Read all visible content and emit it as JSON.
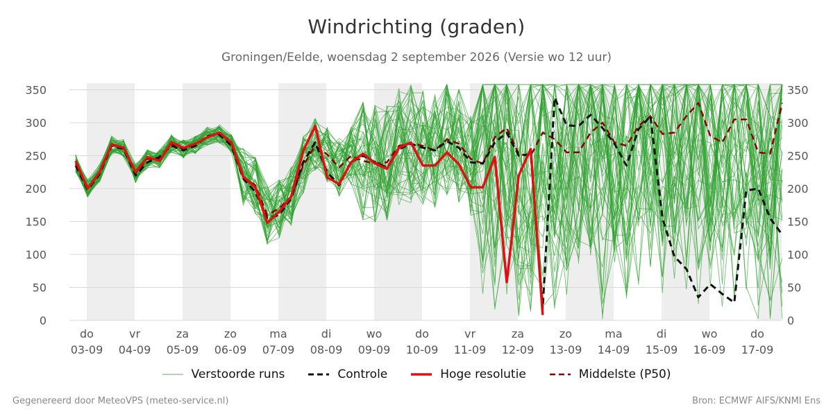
{
  "header": {
    "title": "Windrichting (graden)",
    "subtitle": "Groningen/Eelde, woensdag  2 september 2026 (Versie wo 12 uur)"
  },
  "footer": {
    "left": "Gegenereerd door MeteoVPS (meteo-service.nl)",
    "right": "Bron: ECMWF AIFS/KNMI Ens"
  },
  "colors": {
    "members": "#2ca02c",
    "control": "#111111",
    "hires": "#dd1111",
    "median": "#8b0000",
    "weekend_shade": "#eeeeee",
    "grid": "#d8d8d8"
  },
  "legend": [
    {
      "key": "members",
      "label": "Verstoorde runs",
      "style": "thin"
    },
    {
      "key": "control",
      "label": "Controle",
      "style": "dashed"
    },
    {
      "key": "hires",
      "label": "Hoge resolutie",
      "style": "solid"
    },
    {
      "key": "median",
      "label": "Middelste (P50)",
      "style": "dashed"
    }
  ],
  "chart_data": {
    "type": "line",
    "title": "Windrichting (graden)",
    "x_unit": "days (time axis, 6-hourly steps starting 2 Sep 2026 18:00)",
    "ylim": [
      0,
      360
    ],
    "yticks": [
      0,
      50,
      100,
      150,
      200,
      250,
      300,
      350
    ],
    "x_start_index": 0,
    "x_step_hours": 6,
    "date_ticks": [
      {
        "day": "do",
        "date": "03-09"
      },
      {
        "day": "vr",
        "date": "04-09"
      },
      {
        "day": "za",
        "date": "05-09"
      },
      {
        "day": "zo",
        "date": "06-09"
      },
      {
        "day": "ma",
        "date": "07-09"
      },
      {
        "day": "di",
        "date": "08-09"
      },
      {
        "day": "wo",
        "date": "09-09"
      },
      {
        "day": "do",
        "date": "10-09"
      },
      {
        "day": "vr",
        "date": "11-09"
      },
      {
        "day": "za",
        "date": "12-09"
      },
      {
        "day": "zo",
        "date": "13-09"
      },
      {
        "day": "ma",
        "date": "14-09"
      },
      {
        "day": "di",
        "date": "15-09"
      },
      {
        "day": "wo",
        "date": "16-09"
      },
      {
        "day": "do",
        "date": "17-09"
      }
    ],
    "grid": true,
    "legend_position": "bottom",
    "series": [
      {
        "name": "Hoge resolutie",
        "key": "hires",
        "values": [
          242,
          200,
          225,
          267,
          262,
          225,
          248,
          242,
          270,
          262,
          268,
          278,
          285,
          270,
          218,
          202,
          148,
          165,
          188,
          257,
          295,
          217,
          207,
          240,
          253,
          238,
          230,
          262,
          270,
          235,
          235,
          255,
          237,
          202,
          202,
          248,
          58,
          220,
          260,
          8
        ]
      },
      {
        "name": "Controle",
        "key": "control",
        "values": [
          235,
          198,
          222,
          265,
          260,
          220,
          240,
          248,
          265,
          258,
          265,
          280,
          282,
          265,
          215,
          195,
          155,
          160,
          185,
          240,
          270,
          225,
          205,
          240,
          250,
          240,
          232,
          260,
          268,
          262,
          258,
          272,
          262,
          240,
          238,
          270,
          285,
          250,
          252,
          18,
          338,
          296,
          295,
          312,
          292,
          268,
          235,
          290,
          310,
          155,
          97,
          78,
          35,
          55,
          40,
          27,
          197,
          200,
          155,
          130
        ]
      },
      {
        "name": "Middelste (P50)",
        "key": "median",
        "values": [
          238,
          200,
          224,
          266,
          261,
          223,
          245,
          245,
          268,
          260,
          267,
          280,
          283,
          268,
          218,
          205,
          160,
          170,
          188,
          235,
          265,
          252,
          232,
          250,
          242,
          238,
          240,
          265,
          268,
          265,
          258,
          275,
          268,
          245,
          238,
          278,
          292,
          252,
          250,
          285,
          275,
          255,
          255,
          285,
          300,
          270,
          265,
          295,
          310,
          283,
          285,
          310,
          330,
          280,
          270,
          305,
          305,
          255,
          253,
          330
        ]
      },
      {
        "name": "Verstoorde runs",
        "key": "members",
        "generated": true,
        "member_count": 50
      }
    ]
  }
}
